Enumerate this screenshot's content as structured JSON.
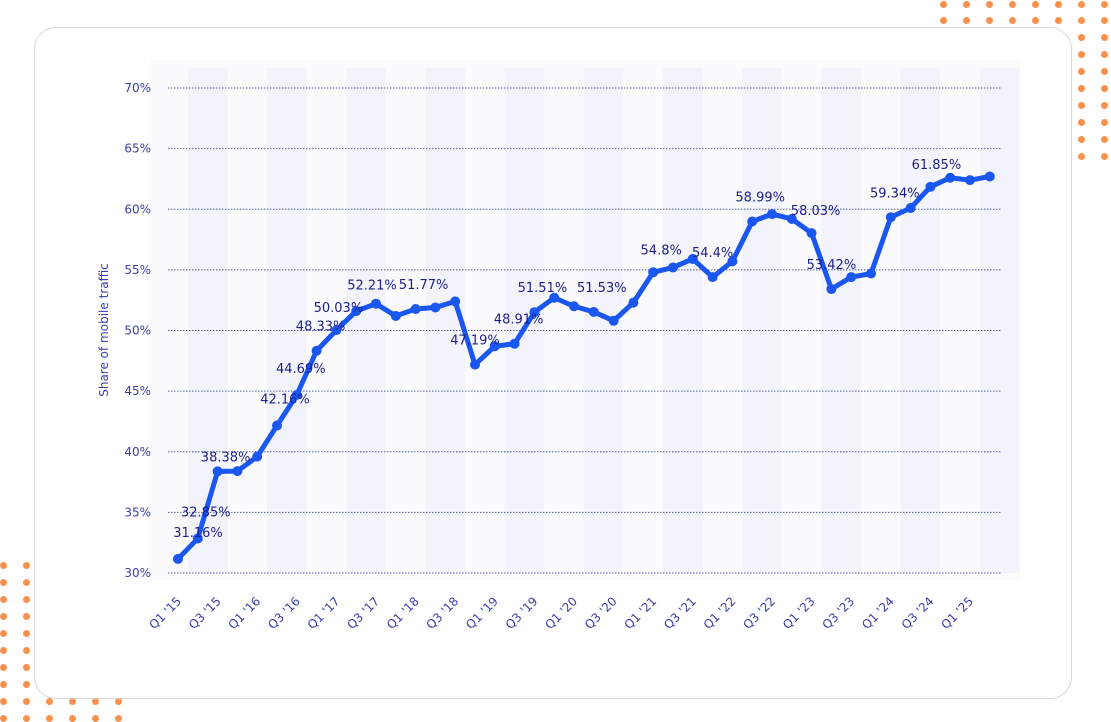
{
  "chart_data": {
    "type": "line",
    "title": "",
    "xlabel": "",
    "ylabel": "Share of mobile traffic",
    "ylim": [
      30,
      70
    ],
    "yticks": [
      "30%",
      "35%",
      "40%",
      "45%",
      "50%",
      "55%",
      "60%",
      "65%",
      "70%"
    ],
    "grid": true,
    "legend": null,
    "x_tick_labels": [
      "Q1 '15",
      "Q3 '15",
      "Q1 '16",
      "Q3 '16",
      "Q1 '17",
      "Q3 '17",
      "Q1 '18",
      "Q3 '18",
      "Q1 '19",
      "Q3 '19",
      "Q1 '20",
      "Q3 '20",
      "Q1 '21",
      "Q3 '21",
      "Q1 '22",
      "Q3 '22",
      "Q1 '23",
      "Q3 '23",
      "Q1 '24",
      "Q3 '24",
      "Q1 '25"
    ],
    "x": [
      "Q1 '15",
      "Q2 '15",
      "Q3 '15",
      "Q4 '15",
      "Q1 '16",
      "Q2 '16",
      "Q3 '16",
      "Q4 '16",
      "Q1 '17",
      "Q2 '17",
      "Q3 '17",
      "Q4 '17",
      "Q1 '18",
      "Q2 '18",
      "Q3 '18",
      "Q4 '18",
      "Q1 '19",
      "Q2 '19",
      "Q3 '19",
      "Q4 '19",
      "Q1 '20",
      "Q2 '20",
      "Q3 '20",
      "Q4 '20",
      "Q1 '21",
      "Q2 '21",
      "Q3 '21",
      "Q4 '21",
      "Q1 '22",
      "Q2 '22",
      "Q3 '22",
      "Q4 '22",
      "Q1 '23",
      "Q2 '23",
      "Q3 '23",
      "Q4 '23",
      "Q1 '24",
      "Q2 '24",
      "Q3 '24",
      "Q4 '24",
      "Q1 '25",
      "Q2 '25"
    ],
    "series": [
      {
        "name": "Share of mobile traffic",
        "color": "#1a56f0",
        "values": [
          31.16,
          32.85,
          38.38,
          38.4,
          39.6,
          42.16,
          44.69,
          48.33,
          50.03,
          51.6,
          52.21,
          51.2,
          51.77,
          51.9,
          52.4,
          47.19,
          48.7,
          48.91,
          51.51,
          52.7,
          52.0,
          51.53,
          50.8,
          52.3,
          54.8,
          55.2,
          55.9,
          54.4,
          55.7,
          58.99,
          59.6,
          59.2,
          58.03,
          53.42,
          54.4,
          54.7,
          59.34,
          60.1,
          61.85,
          62.6,
          62.4,
          62.7
        ]
      }
    ],
    "data_labels": [
      {
        "x": "Q1 '15",
        "text": "31.16%"
      },
      {
        "x": "Q2 '15",
        "text": "32.85%"
      },
      {
        "x": "Q3 '15",
        "text": "38.38%"
      },
      {
        "x": "Q2 '16",
        "text": "42.16%"
      },
      {
        "x": "Q3 '16",
        "text": "44.69%"
      },
      {
        "x": "Q4 '16",
        "text": "48.33%"
      },
      {
        "x": "Q1 '17",
        "text": "50.03%"
      },
      {
        "x": "Q3 '17",
        "text": "52.21%"
      },
      {
        "x": "Q1 '18",
        "text": "51.77%"
      },
      {
        "x": "Q4 '18",
        "text": "47.19%"
      },
      {
        "x": "Q2 '19",
        "text": "48.91%"
      },
      {
        "x": "Q3 '19",
        "text": "51.51%"
      },
      {
        "x": "Q2 '20",
        "text": "51.53%"
      },
      {
        "x": "Q1 '21",
        "text": "54.8%"
      },
      {
        "x": "Q4 '21",
        "text": "54.4%"
      },
      {
        "x": "Q2 '22",
        "text": "58.99%"
      },
      {
        "x": "Q1 '23",
        "text": "58.03%"
      },
      {
        "x": "Q2 '23",
        "text": "53.42%"
      },
      {
        "x": "Q1 '24",
        "text": "59.34%"
      },
      {
        "x": "Q3 '24",
        "text": "61.85%"
      }
    ]
  },
  "colors": {
    "line": "#1a56f0",
    "label_text": "#1b1f8a",
    "axis_text": "#3a3fa8",
    "grid": "#5560a0",
    "band": "#f3f4fb",
    "accent_dots": "#f7914d",
    "card_border": "#d7d7dc"
  }
}
